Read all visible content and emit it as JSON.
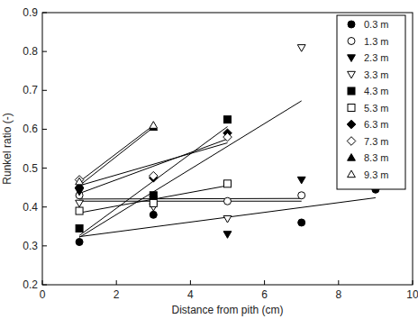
{
  "chart_data": {
    "type": "scatter",
    "x_label": "Distance from pith (cm)",
    "y_label": "Runkel ratio (-)",
    "xlim": [
      0,
      10
    ],
    "xticks": [
      0,
      2,
      4,
      6,
      8,
      10
    ],
    "ylim": [
      0.2,
      0.9
    ],
    "yticks": [
      0.2,
      0.3,
      0.4,
      0.5,
      0.6,
      0.7,
      0.8,
      0.9
    ],
    "legend": "upper right",
    "series": [
      {
        "name": "0.3 m",
        "color": "#000000",
        "marker": "filled-circle",
        "line_style": "solid",
        "x": [
          1,
          3,
          7,
          9
        ],
        "values": [
          0.31,
          0.38,
          0.36,
          0.445
        ]
      },
      {
        "name": "1.3 m",
        "color": "#000000",
        "marker": "open-circle",
        "line_style": "solid",
        "x": [
          1,
          3,
          5,
          7
        ],
        "values": [
          0.43,
          0.41,
          0.415,
          0.43
        ]
      },
      {
        "name": "2.3 m",
        "color": "#000000",
        "marker": "filled-triangle-down",
        "line_style": "solid",
        "x": [
          1,
          3,
          5,
          7
        ],
        "values": [
          0.44,
          0.42,
          0.33,
          0.47
        ]
      },
      {
        "name": "3.3 m",
        "color": "#000000",
        "marker": "open-triangle-down",
        "line_style": "solid",
        "x": [
          1,
          3,
          5,
          7
        ],
        "values": [
          0.41,
          0.4,
          0.37,
          0.81
        ]
      },
      {
        "name": "4.3 m",
        "color": "#000000",
        "marker": "filled-square",
        "line_style": "solid",
        "x": [
          1,
          3,
          5
        ],
        "values": [
          0.345,
          0.43,
          0.625
        ]
      },
      {
        "name": "5.3 m",
        "color": "#000000",
        "marker": "open-square",
        "line_style": "solid",
        "x": [
          1,
          3,
          5
        ],
        "values": [
          0.39,
          0.41,
          0.46
        ]
      },
      {
        "name": "6.3 m",
        "color": "#000000",
        "marker": "filled-diamond",
        "line_style": "solid",
        "x": [
          1,
          3,
          5
        ],
        "values": [
          0.45,
          0.475,
          0.59
        ]
      },
      {
        "name": "7.3 m",
        "color": "#000000",
        "marker": "open-diamond",
        "line_style": "solid",
        "x": [
          1,
          3,
          5
        ],
        "values": [
          0.47,
          0.48,
          0.58
        ]
      },
      {
        "name": "8.3 m",
        "color": "#000000",
        "marker": "filled-triangle-up",
        "line_style": "solid",
        "x": [
          1,
          3
        ],
        "values": [
          0.455,
          0.605
        ]
      },
      {
        "name": "9.3 m",
        "color": "#000000",
        "marker": "open-triangle-up",
        "line_style": "solid",
        "x": [
          1,
          3
        ],
        "values": [
          0.465,
          0.61
        ]
      }
    ]
  }
}
